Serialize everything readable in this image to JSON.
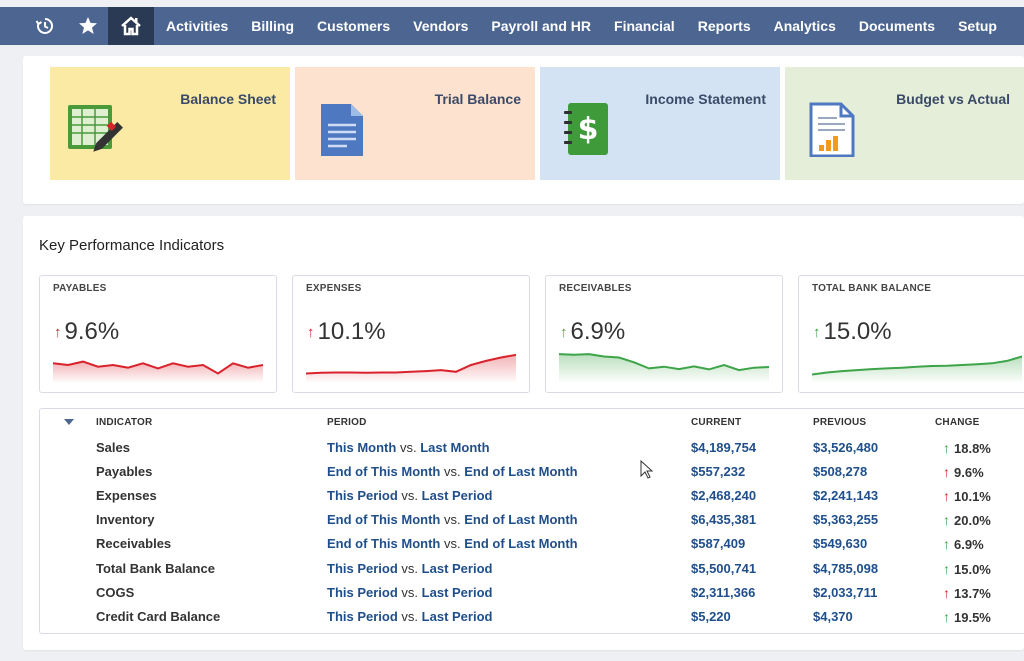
{
  "nav": {
    "icons": [
      "history-icon",
      "star-icon",
      "home-icon"
    ],
    "items": [
      "Activities",
      "Billing",
      "Customers",
      "Vendors",
      "Payroll and HR",
      "Financial",
      "Reports",
      "Analytics",
      "Documents",
      "Setup"
    ]
  },
  "reports": [
    {
      "title": "Balance Sheet",
      "bg": "#faeaa4",
      "icon": "spreadsheet-pen-icon"
    },
    {
      "title": "Trial Balance",
      "bg": "#fde3cf",
      "icon": "document-icon"
    },
    {
      "title": "Income Statement",
      "bg": "#d3e3f3",
      "icon": "dollar-notebook-icon"
    },
    {
      "title": "Budget vs Actual",
      "bg": "#e4eed8",
      "icon": "chart-document-icon"
    }
  ],
  "kpi": {
    "title": "Key Performance Indicators",
    "tiles": [
      {
        "label": "PAYABLES",
        "value": "9.6%",
        "direction": "up",
        "status": "bad",
        "color": "#d9222c",
        "spark": [
          0.55,
          0.5,
          0.6,
          0.45,
          0.5,
          0.42,
          0.55,
          0.4,
          0.55,
          0.45,
          0.5,
          0.25,
          0.55,
          0.42,
          0.5
        ]
      },
      {
        "label": "EXPENSES",
        "value": "10.1%",
        "direction": "up",
        "status": "bad",
        "color": "#d9222c",
        "spark": [
          0.25,
          0.27,
          0.28,
          0.28,
          0.27,
          0.28,
          0.28,
          0.3,
          0.32,
          0.35,
          0.3,
          0.5,
          0.62,
          0.72,
          0.8
        ]
      },
      {
        "label": "RECEIVABLES",
        "value": "6.9%",
        "direction": "up",
        "status": "good",
        "color": "#3da448",
        "spark": [
          0.82,
          0.8,
          0.82,
          0.75,
          0.72,
          0.58,
          0.4,
          0.45,
          0.38,
          0.46,
          0.37,
          0.5,
          0.35,
          0.42,
          0.44
        ]
      },
      {
        "label": "TOTAL BANK BALANCE",
        "value": "15.0%",
        "direction": "up",
        "status": "good",
        "color": "#3da448",
        "spark": [
          0.22,
          0.28,
          0.32,
          0.35,
          0.38,
          0.4,
          0.42,
          0.45,
          0.47,
          0.48,
          0.5,
          0.52,
          0.55,
          0.62,
          0.75
        ]
      }
    ]
  },
  "table": {
    "headers": {
      "indicator": "INDICATOR",
      "period": "PERIOD",
      "current": "CURRENT",
      "previous": "PREVIOUS",
      "change": "CHANGE"
    },
    "vs": "vs.",
    "rows": [
      {
        "indicator": "Sales",
        "from": "This Month",
        "to": "Last Month",
        "current": "$4,189,754",
        "previous": "$3,526,480",
        "change": "18.8%",
        "status": "good"
      },
      {
        "indicator": "Payables",
        "from": "End of This Month",
        "to": "End of Last Month",
        "current": "$557,232",
        "previous": "$508,278",
        "change": "9.6%",
        "status": "bad"
      },
      {
        "indicator": "Expenses",
        "from": "This Period",
        "to": "Last Period",
        "current": "$2,468,240",
        "previous": "$2,241,143",
        "change": "10.1%",
        "status": "bad"
      },
      {
        "indicator": "Inventory",
        "from": "End of This Month",
        "to": "End of Last Month",
        "current": "$6,435,381",
        "previous": "$5,363,255",
        "change": "20.0%",
        "status": "good"
      },
      {
        "indicator": "Receivables",
        "from": "End of This Month",
        "to": "End of Last Month",
        "current": "$587,409",
        "previous": "$549,630",
        "change": "6.9%",
        "status": "good"
      },
      {
        "indicator": "Total Bank Balance",
        "from": "This Period",
        "to": "Last Period",
        "current": "$5,500,741",
        "previous": "$4,785,098",
        "change": "15.0%",
        "status": "good"
      },
      {
        "indicator": "COGS",
        "from": "This Period",
        "to": "Last Period",
        "current": "$2,311,366",
        "previous": "$2,033,711",
        "change": "13.7%",
        "status": "bad"
      },
      {
        "indicator": "Credit Card Balance",
        "from": "This Period",
        "to": "Last Period",
        "current": "$5,220",
        "previous": "$4,370",
        "change": "19.5%",
        "status": "good"
      }
    ]
  },
  "colors": {
    "nav": "#4c6691",
    "nav_active": "#2a3a55",
    "link": "#1f4f8b",
    "up_bad": "#d9222c",
    "up_good": "#3da448"
  }
}
